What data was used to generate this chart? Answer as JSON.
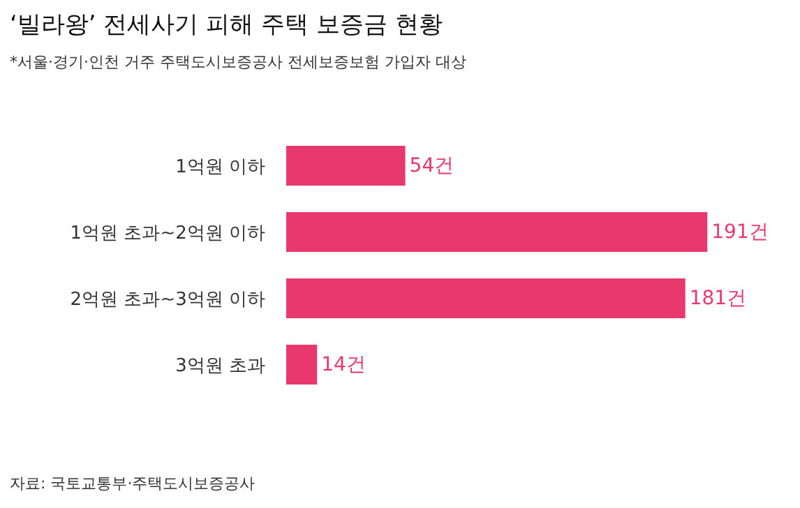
{
  "chart_data": {
    "type": "bar",
    "orientation": "horizontal",
    "title": "‘빌라왕’ 전세사기 피해 주택 보증금 현황",
    "subtitle": "*서울·경기·인천 거주 주택도시보증공사 전세보증보험 가입자 대상",
    "categories": [
      "1억원 이하",
      "1억원 초과~2억원 이하",
      "2억원 초과~3억원 이하",
      "3억원 초과"
    ],
    "values": [
      54,
      191,
      181,
      14
    ],
    "value_labels": [
      "54건",
      "191건",
      "181건",
      "14건"
    ],
    "color": "#e8386d",
    "annotations": [
      "자료: 국토교통부·주택도시보증공사"
    ]
  }
}
